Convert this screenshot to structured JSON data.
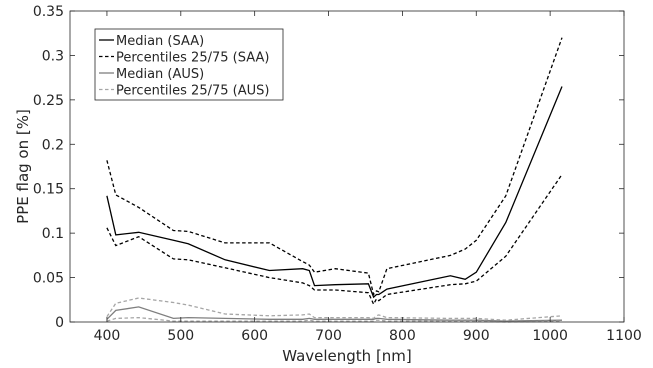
{
  "chart_data": {
    "type": "line",
    "title": "",
    "xlabel": "Wavelength [nm]",
    "ylabel": "PPE flag on [%]",
    "xlim": [
      350,
      1100
    ],
    "ylim": [
      0,
      0.35
    ],
    "xticks": [
      400,
      500,
      600,
      700,
      800,
      900,
      1000,
      1100
    ],
    "yticks": [
      0,
      0.05,
      0.1,
      0.15,
      0.2,
      0.25,
      0.3,
      0.35
    ],
    "xtick_labels": [
      "400",
      "500",
      "600",
      "700",
      "800",
      "900",
      "1000",
      "1100"
    ],
    "ytick_labels": [
      "0",
      "0.05",
      "0.1",
      "0.15",
      "0.2",
      "0.25",
      "0.3",
      "0.35"
    ],
    "grid": false,
    "legend_position": "top-left",
    "series": [
      {
        "name": "Median (SAA)",
        "color": "#000000",
        "style": "solid",
        "x": [
          400,
          412,
          443,
          490,
          510,
          560,
          620,
          665,
          674,
          681,
          709,
          754,
          761,
          765,
          768,
          779,
          865,
          885,
          900,
          940,
          1016
        ],
        "y": [
          0.142,
          0.098,
          0.101,
          0.092,
          0.088,
          0.07,
          0.058,
          0.06,
          0.058,
          0.041,
          0.042,
          0.043,
          0.028,
          0.031,
          0.031,
          0.037,
          0.052,
          0.048,
          0.056,
          0.112,
          0.265
        ]
      },
      {
        "name": "Percentiles 25/75 (SAA)",
        "color": "#000000",
        "style": "dashed",
        "x": [
          400,
          412,
          443,
          490,
          510,
          560,
          620,
          665,
          674,
          681,
          709,
          754,
          761,
          765,
          768,
          779,
          865,
          885,
          900,
          940,
          1016
        ],
        "y": [
          0.182,
          0.143,
          0.129,
          0.103,
          0.102,
          0.089,
          0.089,
          0.068,
          0.064,
          0.056,
          0.06,
          0.055,
          0.031,
          0.035,
          0.034,
          0.06,
          0.075,
          0.082,
          0.092,
          0.142,
          0.32
        ]
      },
      {
        "name": "",
        "color": "#000000",
        "style": "dashed",
        "x": [
          400,
          412,
          443,
          490,
          510,
          560,
          620,
          665,
          674,
          681,
          709,
          754,
          761,
          765,
          768,
          779,
          865,
          885,
          900,
          940,
          1016
        ],
        "y": [
          0.106,
          0.086,
          0.096,
          0.071,
          0.07,
          0.061,
          0.05,
          0.044,
          0.041,
          0.036,
          0.036,
          0.033,
          0.02,
          0.026,
          0.024,
          0.031,
          0.042,
          0.043,
          0.046,
          0.074,
          0.166
        ]
      },
      {
        "name": "Median (AUS)",
        "color": "#7f7f7f",
        "style": "solid",
        "x": [
          400,
          412,
          443,
          490,
          510,
          560,
          620,
          665,
          674,
          681,
          709,
          754,
          761,
          765,
          768,
          779,
          865,
          885,
          900,
          940,
          1016
        ],
        "y": [
          0.003,
          0.013,
          0.017,
          0.004,
          0.005,
          0.004,
          0.003,
          0.003,
          0.004,
          0.003,
          0.003,
          0.003,
          0.003,
          0.004,
          0.004,
          0.003,
          0.002,
          0.002,
          0.002,
          0.001,
          0.002
        ]
      },
      {
        "name": "Percentiles 25/75 (AUS)",
        "color": "#a6a6a6",
        "style": "dashed",
        "x": [
          400,
          412,
          443,
          490,
          510,
          560,
          620,
          665,
          674,
          681,
          709,
          754,
          761,
          765,
          768,
          779,
          865,
          885,
          900,
          940,
          1016
        ],
        "y": [
          0.006,
          0.021,
          0.027,
          0.022,
          0.019,
          0.009,
          0.007,
          0.008,
          0.009,
          0.005,
          0.005,
          0.005,
          0.004,
          0.007,
          0.008,
          0.005,
          0.004,
          0.004,
          0.004,
          0.002,
          0.007
        ]
      },
      {
        "name": "",
        "color": "#a6a6a6",
        "style": "dashed",
        "x": [
          400,
          412,
          443,
          490,
          510,
          560,
          620,
          665,
          674,
          681,
          709,
          754,
          761,
          765,
          768,
          779,
          865,
          885,
          900,
          940,
          1016
        ],
        "y": [
          0.001,
          0.004,
          0.005,
          0.001,
          0.001,
          0.001,
          0.001,
          0.001,
          0.002,
          0.001,
          0.001,
          0.001,
          0.001,
          0.002,
          0.002,
          0.001,
          0.001,
          0.001,
          0.001,
          0.0,
          0.001
        ]
      }
    ]
  }
}
